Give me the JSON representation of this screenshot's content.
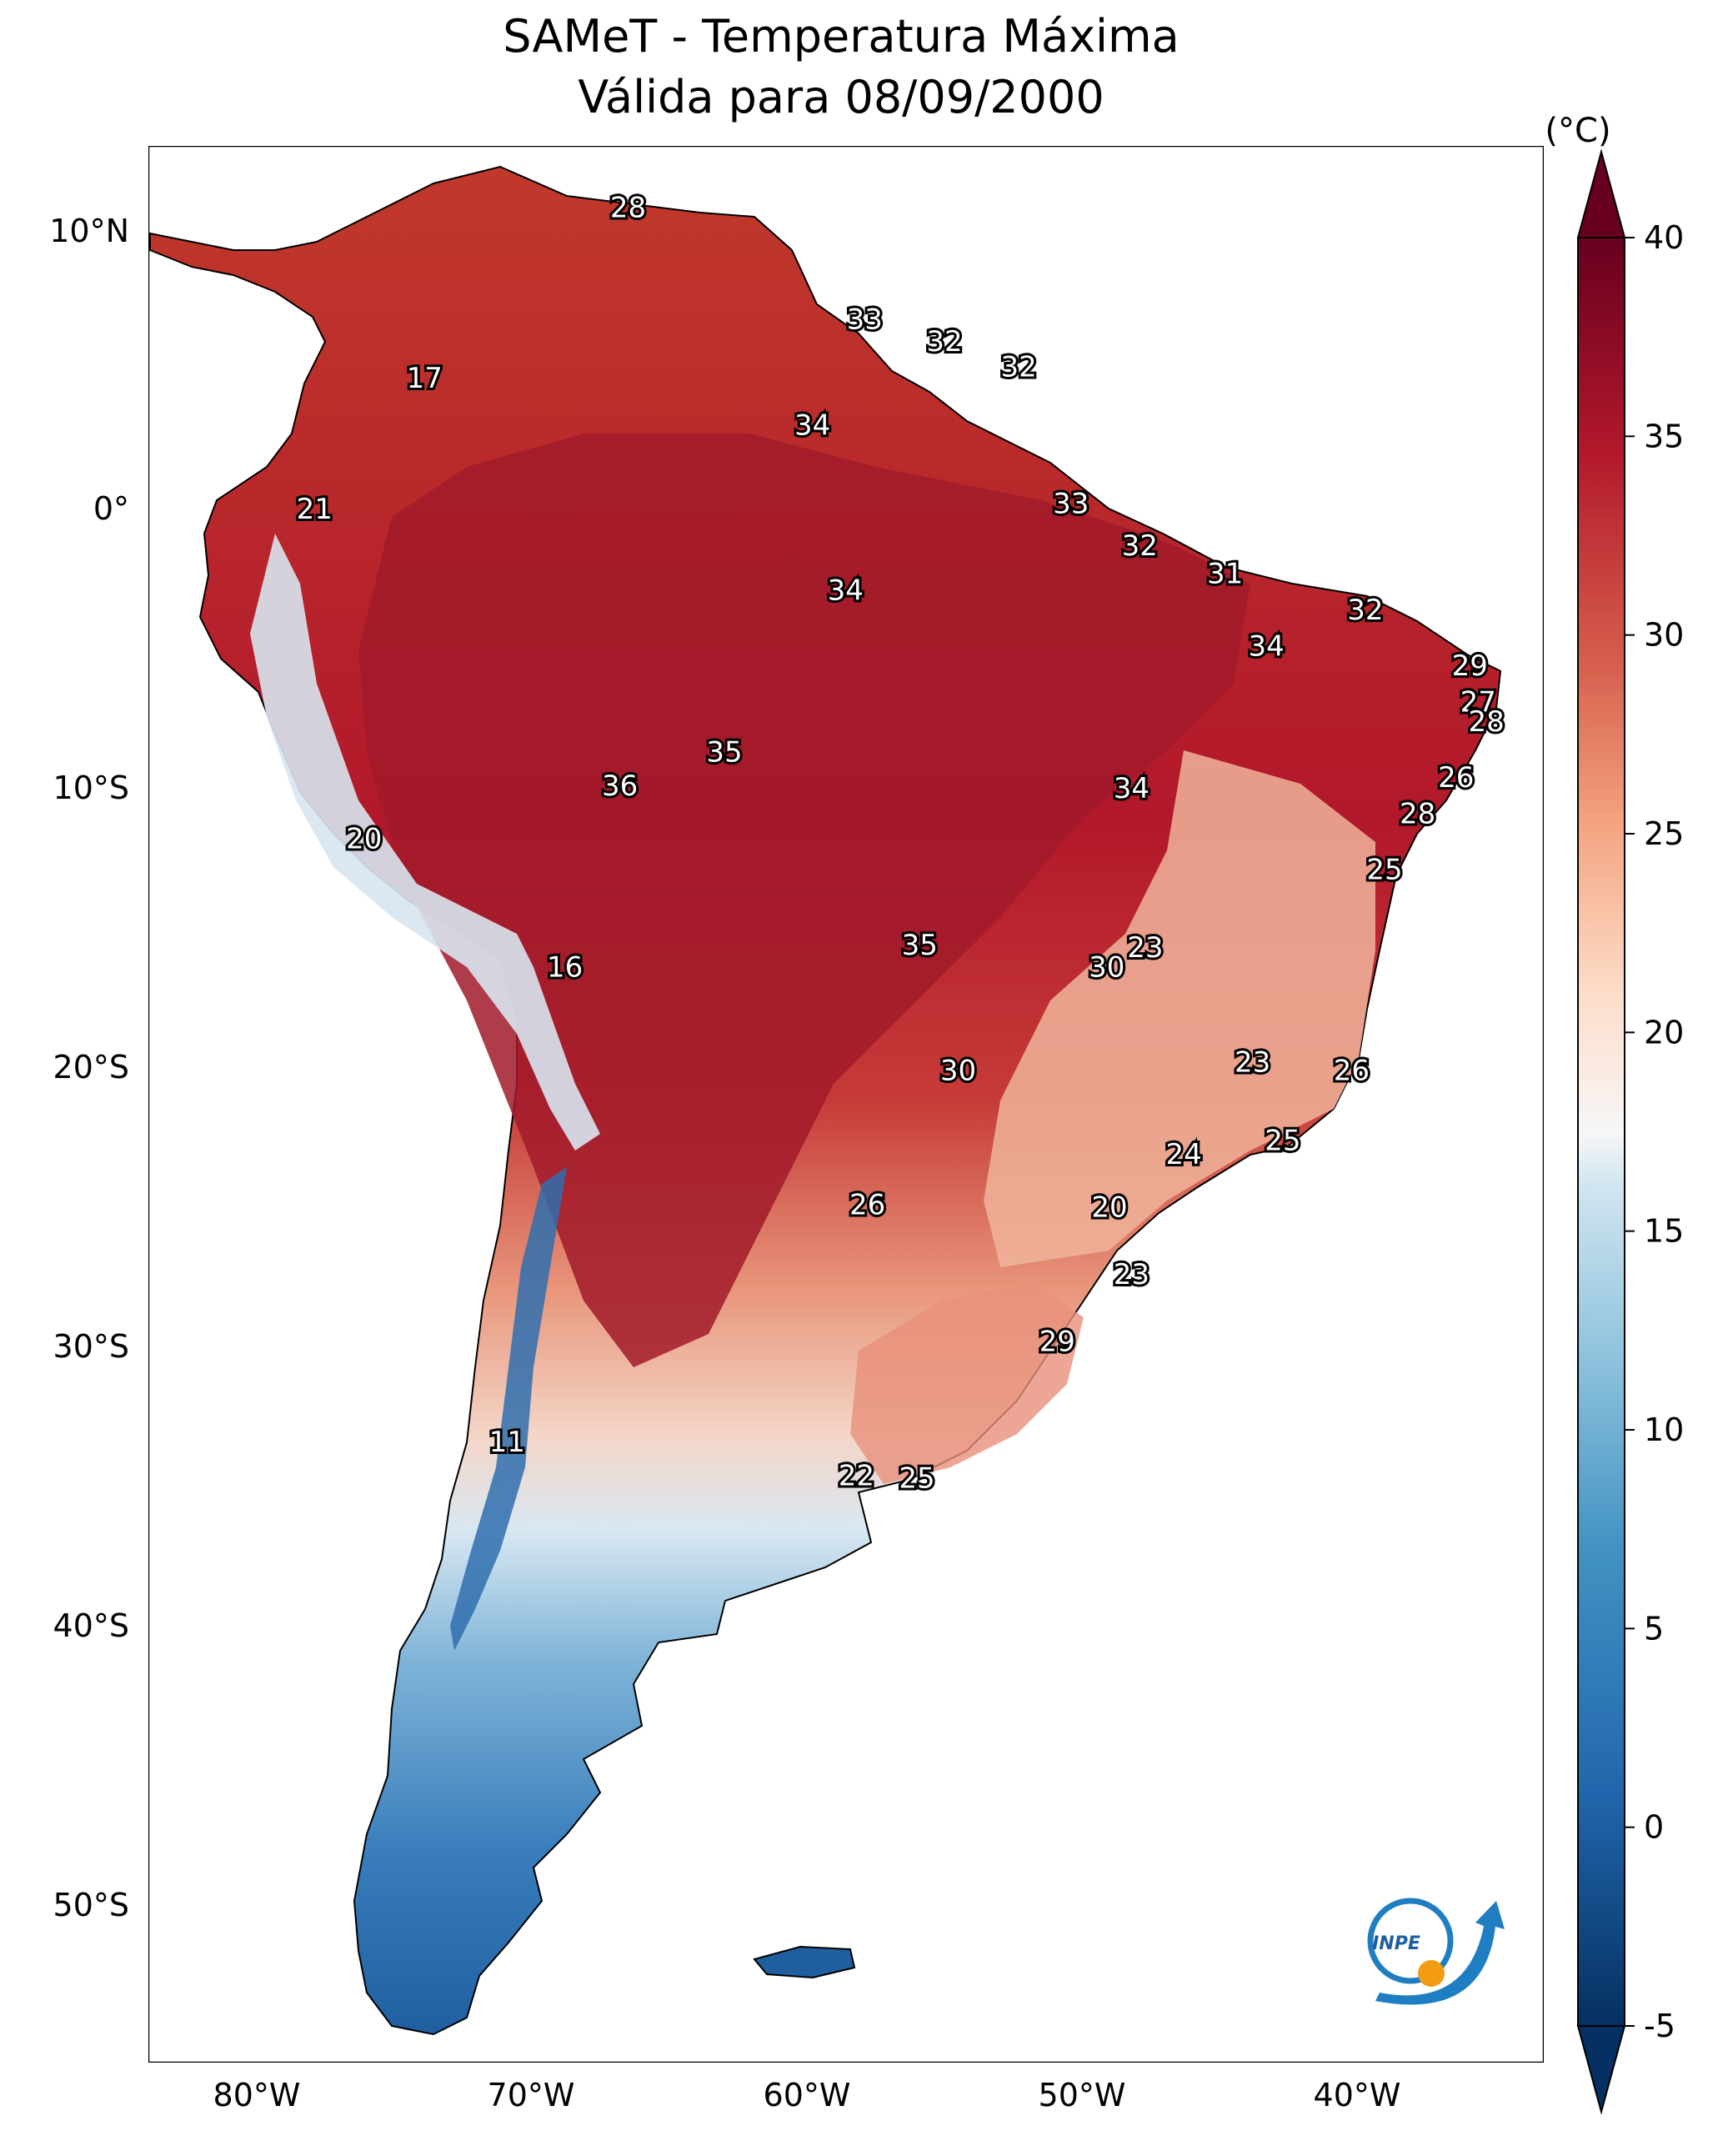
{
  "title": "SAMeT - Temperatura Máxima",
  "subtitle": "Válida para 08/09/2000",
  "colorbar": {
    "unit": "(°C)",
    "ticks": [
      "40",
      "35",
      "30",
      "25",
      "20",
      "15",
      "10",
      "5",
      "0",
      "-5"
    ],
    "tick_values": [
      40,
      35,
      30,
      25,
      20,
      15,
      10,
      5,
      0,
      -5
    ],
    "range": [
      -5,
      40
    ],
    "colors": {
      "max": "#67001f",
      "hot": "#b2182b",
      "warm": "#d6604d",
      "mild": "#f4a582",
      "neutral": "#f7f7f7",
      "cool": "#92c5de",
      "cold": "#4393c3",
      "min": "#053061"
    }
  },
  "axes": {
    "lat_labels": [
      "10°N",
      "0°",
      "10°S",
      "20°S",
      "30°S",
      "40°S",
      "50°S"
    ],
    "lon_labels": [
      "80°W",
      "70°W",
      "60°W",
      "50°W",
      "40°W"
    ]
  },
  "logo": {
    "text": "INPE"
  },
  "temperature_labels": [
    {
      "text": "28",
      "lon": -66.5,
      "lat": 10.6
    },
    {
      "text": "17",
      "lon": -73.9,
      "lat": 4.5
    },
    {
      "text": "33",
      "lon": -57.9,
      "lat": 6.6
    },
    {
      "text": "32",
      "lon": -55.0,
      "lat": 5.8
    },
    {
      "text": "32",
      "lon": -52.3,
      "lat": 4.9
    },
    {
      "text": "34",
      "lon": -59.8,
      "lat": 2.8
    },
    {
      "text": "21",
      "lon": -77.9,
      "lat": -0.2
    },
    {
      "text": "33",
      "lon": -50.4,
      "lat": 0.0
    },
    {
      "text": "32",
      "lon": -47.9,
      "lat": -1.5
    },
    {
      "text": "31",
      "lon": -44.8,
      "lat": -2.5
    },
    {
      "text": "34",
      "lon": -58.6,
      "lat": -3.1
    },
    {
      "text": "32",
      "lon": -39.7,
      "lat": -3.8
    },
    {
      "text": "34",
      "lon": -43.3,
      "lat": -5.1
    },
    {
      "text": "29",
      "lon": -35.9,
      "lat": -5.8
    },
    {
      "text": "27",
      "lon": -35.6,
      "lat": -7.1
    },
    {
      "text": "28",
      "lon": -35.3,
      "lat": -7.8
    },
    {
      "text": "35",
      "lon": -63.0,
      "lat": -8.9
    },
    {
      "text": "36",
      "lon": -66.8,
      "lat": -10.1
    },
    {
      "text": "26",
      "lon": -36.4,
      "lat": -9.8
    },
    {
      "text": "34",
      "lon": -48.2,
      "lat": -10.2
    },
    {
      "text": "28",
      "lon": -37.8,
      "lat": -11.1
    },
    {
      "text": "20",
      "lon": -76.1,
      "lat": -12.0
    },
    {
      "text": "25",
      "lon": -39.0,
      "lat": -13.1
    },
    {
      "text": "35",
      "lon": -55.9,
      "lat": -15.8
    },
    {
      "text": "23",
      "lon": -47.7,
      "lat": -15.9
    },
    {
      "text": "16",
      "lon": -68.8,
      "lat": -16.6
    },
    {
      "text": "30",
      "lon": -49.1,
      "lat": -16.6
    },
    {
      "text": "23",
      "lon": -43.8,
      "lat": -20.0
    },
    {
      "text": "30",
      "lon": -54.5,
      "lat": -20.3
    },
    {
      "text": "26",
      "lon": -40.2,
      "lat": -20.3
    },
    {
      "text": "25",
      "lon": -42.7,
      "lat": -22.8
    },
    {
      "text": "24",
      "lon": -46.3,
      "lat": -23.3
    },
    {
      "text": "26",
      "lon": -57.8,
      "lat": -25.1
    },
    {
      "text": "20",
      "lon": -49.0,
      "lat": -25.2
    },
    {
      "text": "23",
      "lon": -48.2,
      "lat": -27.6
    },
    {
      "text": "29",
      "lon": -50.9,
      "lat": -30.0
    },
    {
      "text": "11",
      "lon": -70.9,
      "lat": -33.6
    },
    {
      "text": "22",
      "lon": -58.2,
      "lat": -34.8
    },
    {
      "text": "25",
      "lon": -56.0,
      "lat": -34.9
    }
  ]
}
